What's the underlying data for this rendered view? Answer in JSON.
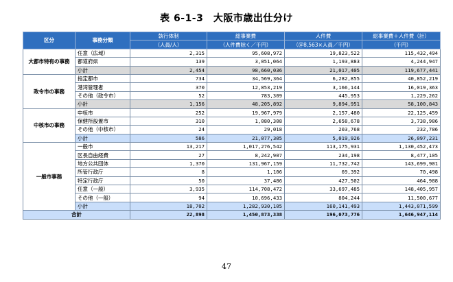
{
  "title": "表 6-1-3　大阪市歳出仕分け",
  "page_number": "47",
  "headers": {
    "group": "区分",
    "type": "事務分類",
    "staff": "執行体制",
    "staff_unit": "（人員/人）",
    "cost": "総事業費",
    "cost_unit": "（人件費除く／千円）",
    "labor": "人件費",
    "labor_unit": "（＠8,563×人員／千円）",
    "total": "総事業費＋人件費（計）",
    "total_unit": "（千円）"
  },
  "groups": [
    {
      "name": "大都市特有の事務",
      "rows": [
        {
          "type": "任意（広域）",
          "staff": "2,315",
          "cost": "95,608,972",
          "labor": "19,823,522",
          "total": "115,432,494"
        },
        {
          "type": "都道府県",
          "staff": "139",
          "cost": "3,051,064",
          "labor": "1,193,883",
          "total": "4,244,947"
        }
      ],
      "subtotal": {
        "type": "小計",
        "staff": "2,454",
        "cost": "98,660,036",
        "labor": "21,017,405",
        "total": "119,677,441"
      }
    },
    {
      "name": "政令市の事務",
      "rows": [
        {
          "type": "指定都市",
          "staff": "734",
          "cost": "34,569,364",
          "labor": "6,282,855",
          "total": "40,852,219"
        },
        {
          "type": "港湾管理者",
          "staff": "370",
          "cost": "12,853,219",
          "labor": "3,166,144",
          "total": "16,019,363"
        },
        {
          "type": "その他（政令市）",
          "staff": "52",
          "cost": "783,309",
          "labor": "445,953",
          "total": "1,229,262"
        }
      ],
      "subtotal": {
        "type": "小計",
        "staff": "1,156",
        "cost": "48,205,892",
        "labor": "9,894,951",
        "total": "58,100,843"
      }
    },
    {
      "name": "中核市の事務",
      "rows": [
        {
          "type": "中核市",
          "staff": "252",
          "cost": "19,967,979",
          "labor": "2,157,480",
          "total": "22,125,459"
        },
        {
          "type": "保健所設置市",
          "staff": "310",
          "cost": "1,080,308",
          "labor": "2,658,678",
          "total": "3,738,986"
        },
        {
          "type": "その他（中核市）",
          "staff": "24",
          "cost": "29,018",
          "labor": "203,768",
          "total": "232,786"
        }
      ],
      "subtotal": {
        "type": "小計",
        "staff": "586",
        "cost": "21,077,305",
        "labor": "5,019,926",
        "total": "26,097,231"
      }
    },
    {
      "name": "一般市事務",
      "rows": [
        {
          "type": "一般市",
          "staff": "13,217",
          "cost": "1,017,276,542",
          "labor": "113,175,931",
          "total": "1,130,452,473"
        },
        {
          "type": "区長自由経費",
          "staff": "27",
          "cost": "8,242,907",
          "labor": "234,198",
          "total": "8,477,105"
        },
        {
          "type": "地方公共団体",
          "staff": "1,370",
          "cost": "131,967,159",
          "labor": "11,732,742",
          "total": "143,699,901"
        },
        {
          "type": "所管行政庁",
          "staff": "8",
          "cost": "1,106",
          "labor": "69,392",
          "total": "70,498"
        },
        {
          "type": "特定行政庁",
          "staff": "50",
          "cost": "37,486",
          "labor": "427,502",
          "total": "464,988"
        },
        {
          "type": "任意（一般）",
          "staff": "3,935",
          "cost": "114,708,472",
          "labor": "33,697,485",
          "total": "148,405,957"
        },
        {
          "type": "その他（一般）",
          "staff": "94",
          "cost": "10,696,433",
          "labor": "804,244",
          "total": "11,500,677"
        }
      ],
      "subtotal": {
        "type": "小計",
        "staff": "18,702",
        "cost": "1,282,930,105",
        "labor": "160,141,493",
        "total": "1,443,071,599"
      }
    }
  ],
  "grand_total": {
    "label": "合計",
    "staff": "22,898",
    "cost": "1,450,873,338",
    "labor": "196,073,776",
    "total": "1,646,947,114"
  }
}
